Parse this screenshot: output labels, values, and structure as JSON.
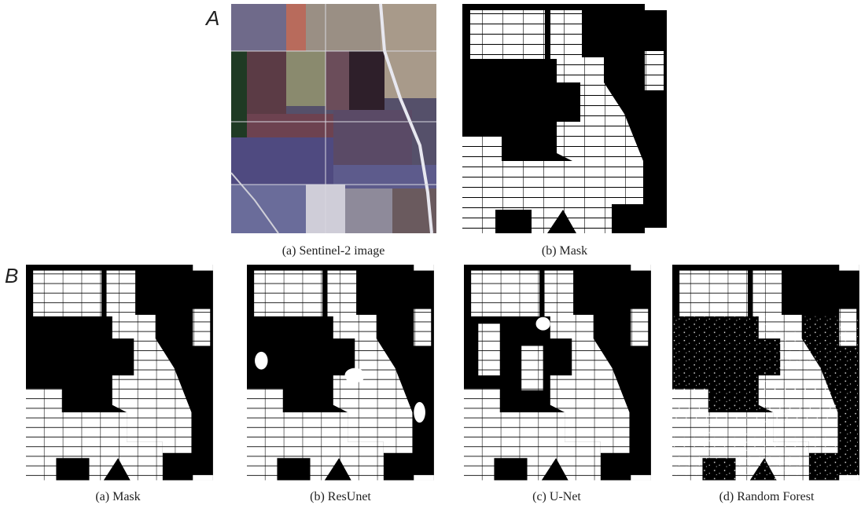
{
  "panel_a": {
    "label": "A",
    "captions": [
      "(a) Sentinel-2 image",
      "(b) Mask"
    ]
  },
  "panel_b": {
    "label": "B",
    "captions": [
      "(a) Mask",
      "(b) ResUnet",
      "(c) U-Net",
      "(d) Random Forest"
    ]
  }
}
